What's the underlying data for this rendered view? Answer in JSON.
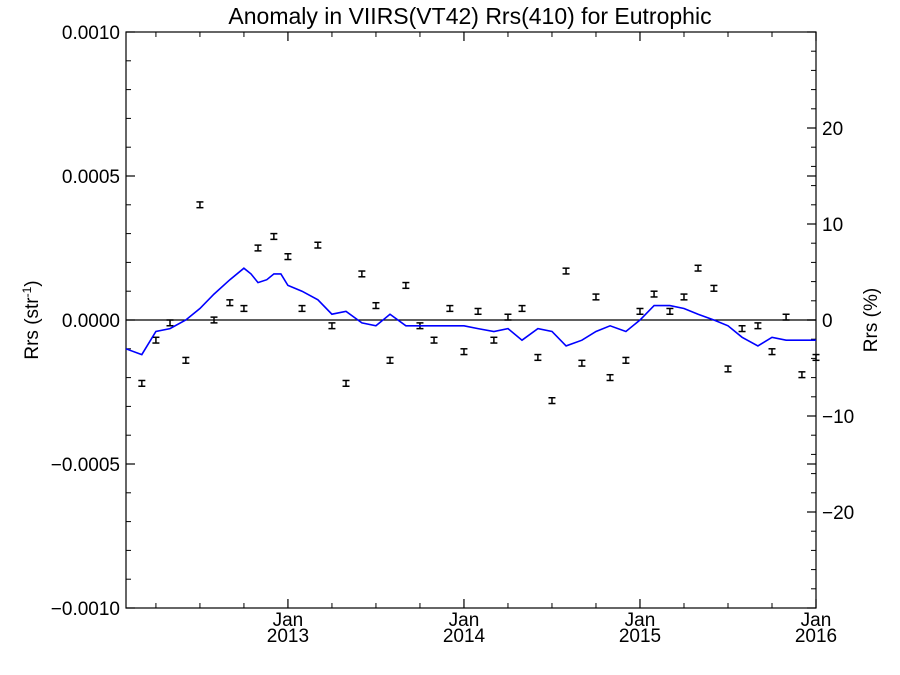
{
  "chart_data": {
    "type": "scatter",
    "title": "Anomaly in VIIRS(VT42) Rrs(410) for Eutrophic",
    "ylabel": "Rrs (str",
    "ylabel_sup": "-1",
    "ylabel_close": ")",
    "y2label": "Rrs (%)",
    "xlim": [
      2012.08,
      2016.0
    ],
    "ylim": [
      -0.001,
      0.001
    ],
    "y2lim": [
      -30,
      30
    ],
    "grid": false,
    "colors": {
      "line": "#0000ff",
      "marks": "#000000",
      "zero_line": "#000000"
    },
    "x_ticks": [
      {
        "x": 2013.0,
        "month": "Jan",
        "year": "2013"
      },
      {
        "x": 2014.0,
        "month": "Jan",
        "year": "2014"
      },
      {
        "x": 2015.0,
        "month": "Jan",
        "year": "2015"
      },
      {
        "x": 2016.0,
        "month": "Jan",
        "year": "2016"
      }
    ],
    "y_ticks": [
      {
        "v": -0.001,
        "label": "−0.0010"
      },
      {
        "v": -0.0005,
        "label": "−0.0005"
      },
      {
        "v": 0.0,
        "label": "0.0000"
      },
      {
        "v": 0.0005,
        "label": "0.0005"
      },
      {
        "v": 0.001,
        "label": "0.0010"
      }
    ],
    "y2_ticks": [
      {
        "v": -20,
        "label": "−20"
      },
      {
        "v": -10,
        "label": "−10"
      },
      {
        "v": 0,
        "label": "0"
      },
      {
        "v": 10,
        "label": "10"
      },
      {
        "v": 20,
        "label": "20"
      }
    ],
    "series": [
      {
        "kind": "errorbar",
        "x": [
          2012.17,
          2012.25,
          2012.33,
          2012.42,
          2012.5,
          2012.58,
          2012.67,
          2012.75,
          2012.83,
          2012.92,
          2013.0,
          2013.08,
          2013.17,
          2013.25,
          2013.33,
          2013.42,
          2013.5,
          2013.58,
          2013.67,
          2013.75,
          2013.83,
          2013.92,
          2014.0,
          2014.08,
          2014.17,
          2014.25,
          2014.33,
          2014.42,
          2014.5,
          2014.58,
          2014.67,
          2014.75,
          2014.83,
          2014.92,
          2015.0,
          2015.08,
          2015.17,
          2015.25,
          2015.33,
          2015.42,
          2015.5,
          2015.58,
          2015.67,
          2015.75,
          2015.83,
          2015.92,
          2016.0
        ],
        "y": [
          -0.00022,
          -7e-05,
          -1e-05,
          -0.00014,
          0.0004,
          0.0,
          6e-05,
          4e-05,
          0.00025,
          0.00029,
          0.00022,
          4e-05,
          0.00026,
          -2e-05,
          -0.00022,
          0.00016,
          5e-05,
          -0.00014,
          0.00012,
          -2e-05,
          -7e-05,
          4e-05,
          -0.00011,
          3e-05,
          -7e-05,
          1e-05,
          4e-05,
          -0.00013,
          -0.00028,
          0.00017,
          -0.00015,
          8e-05,
          -0.0002,
          -0.00014,
          3e-05,
          9e-05,
          3e-05,
          8e-05,
          0.00018,
          0.00011,
          -0.00017,
          -3e-05,
          -2e-05,
          -0.00011,
          1e-05,
          -0.00019,
          -0.00013
        ],
        "err": 1e-05
      },
      {
        "kind": "line",
        "x": [
          2012.08,
          2012.17,
          2012.25,
          2012.33,
          2012.42,
          2012.5,
          2012.58,
          2012.67,
          2012.75,
          2012.79,
          2012.83,
          2012.88,
          2012.92,
          2012.96,
          2013.0,
          2013.08,
          2013.17,
          2013.25,
          2013.33,
          2013.42,
          2013.5,
          2013.58,
          2013.67,
          2013.75,
          2013.83,
          2013.92,
          2014.0,
          2014.08,
          2014.17,
          2014.25,
          2014.33,
          2014.42,
          2014.5,
          2014.58,
          2014.67,
          2014.75,
          2014.83,
          2014.92,
          2015.0,
          2015.08,
          2015.17,
          2015.25,
          2015.33,
          2015.42,
          2015.5,
          2015.58,
          2015.67,
          2015.75,
          2015.83,
          2015.92,
          2016.0
        ],
        "y": [
          -0.0001,
          -0.00012,
          -4e-05,
          -3e-05,
          0.0,
          4e-05,
          9e-05,
          0.00014,
          0.00018,
          0.00016,
          0.00013,
          0.00014,
          0.00016,
          0.00016,
          0.00012,
          0.0001,
          7e-05,
          2e-05,
          3e-05,
          -1e-05,
          -2e-05,
          2e-05,
          -2e-05,
          -2e-05,
          -2e-05,
          -2e-05,
          -2e-05,
          -3e-05,
          -4e-05,
          -3e-05,
          -7e-05,
          -3e-05,
          -4e-05,
          -9e-05,
          -7e-05,
          -4e-05,
          -2e-05,
          -4e-05,
          0.0,
          5e-05,
          5e-05,
          4e-05,
          2e-05,
          0.0,
          -2e-05,
          -6e-05,
          -9e-05,
          -6e-05,
          -7e-05,
          -7e-05,
          -7e-05
        ]
      }
    ]
  }
}
